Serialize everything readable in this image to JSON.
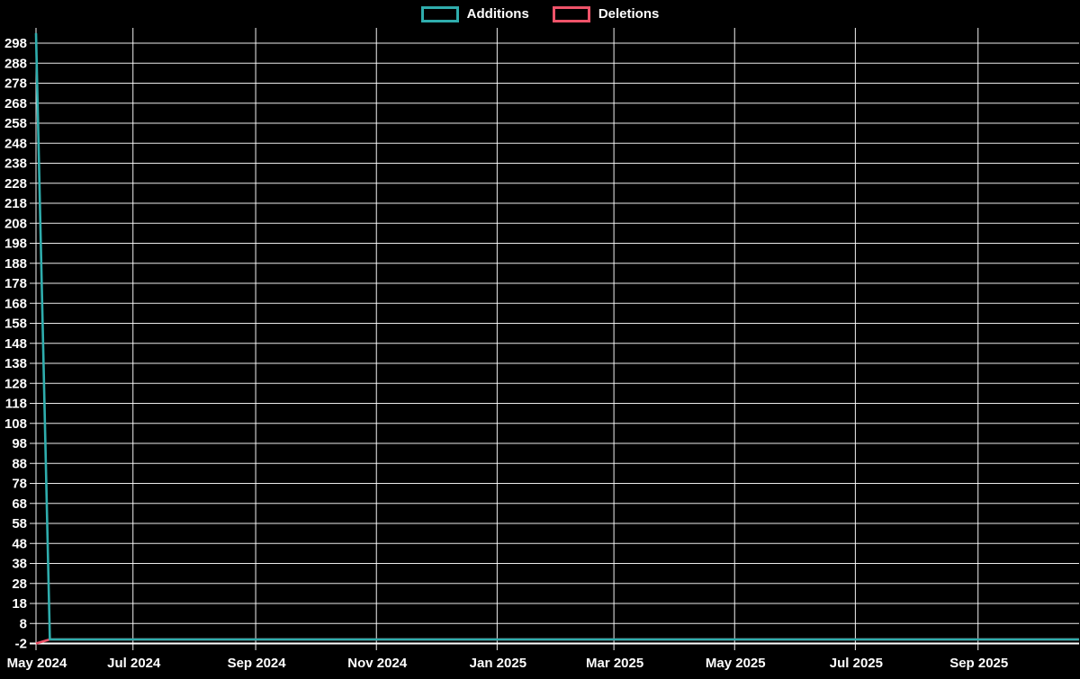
{
  "page": {
    "background_color": "#000000"
  },
  "chart_data": {
    "type": "line",
    "title": "",
    "legend_position": "top-center",
    "grid": true,
    "background_color": "#000000",
    "grid_color": "#ffffff",
    "text_color": "#ffffff",
    "x_axis": {
      "start_date": "2024-05-13",
      "end_date": "2025-10-22",
      "ticks": [
        {
          "label": "May 2024",
          "date": "2024-05-13"
        },
        {
          "label": "Jul 2024",
          "date": "2024-07-01"
        },
        {
          "label": "Sep 2024",
          "date": "2024-09-01"
        },
        {
          "label": "Nov 2024",
          "date": "2024-11-01"
        },
        {
          "label": "Jan 2025",
          "date": "2025-01-01"
        },
        {
          "label": "Mar 2025",
          "date": "2025-03-01"
        },
        {
          "label": "May 2025",
          "date": "2025-05-01"
        },
        {
          "label": "Jul 2025",
          "date": "2025-07-01"
        },
        {
          "label": "Sep 2025",
          "date": "2025-09-01"
        }
      ]
    },
    "y_axis": {
      "min": -2,
      "max": 308,
      "tick_step": 10,
      "tick_labels": [
        "-2",
        "8",
        "18",
        "28",
        "38",
        "48",
        "58",
        "68",
        "78",
        "88",
        "98",
        "108",
        "118",
        "128",
        "138",
        "148",
        "158",
        "168",
        "178",
        "188",
        "198",
        "208",
        "218",
        "228",
        "238",
        "248",
        "258",
        "268",
        "278",
        "288",
        "298"
      ]
    },
    "series": [
      {
        "name": "Additions",
        "color": "#2fadad",
        "points": [
          [
            "2024-05-13",
            303
          ],
          [
            "2024-05-20",
            0
          ],
          [
            "2025-10-22",
            0
          ]
        ]
      },
      {
        "name": "Deletions",
        "color": "#ef5369",
        "points": [
          [
            "2024-05-13",
            -2
          ],
          [
            "2024-05-20",
            0
          ],
          [
            "2025-10-22",
            0
          ]
        ]
      }
    ]
  }
}
